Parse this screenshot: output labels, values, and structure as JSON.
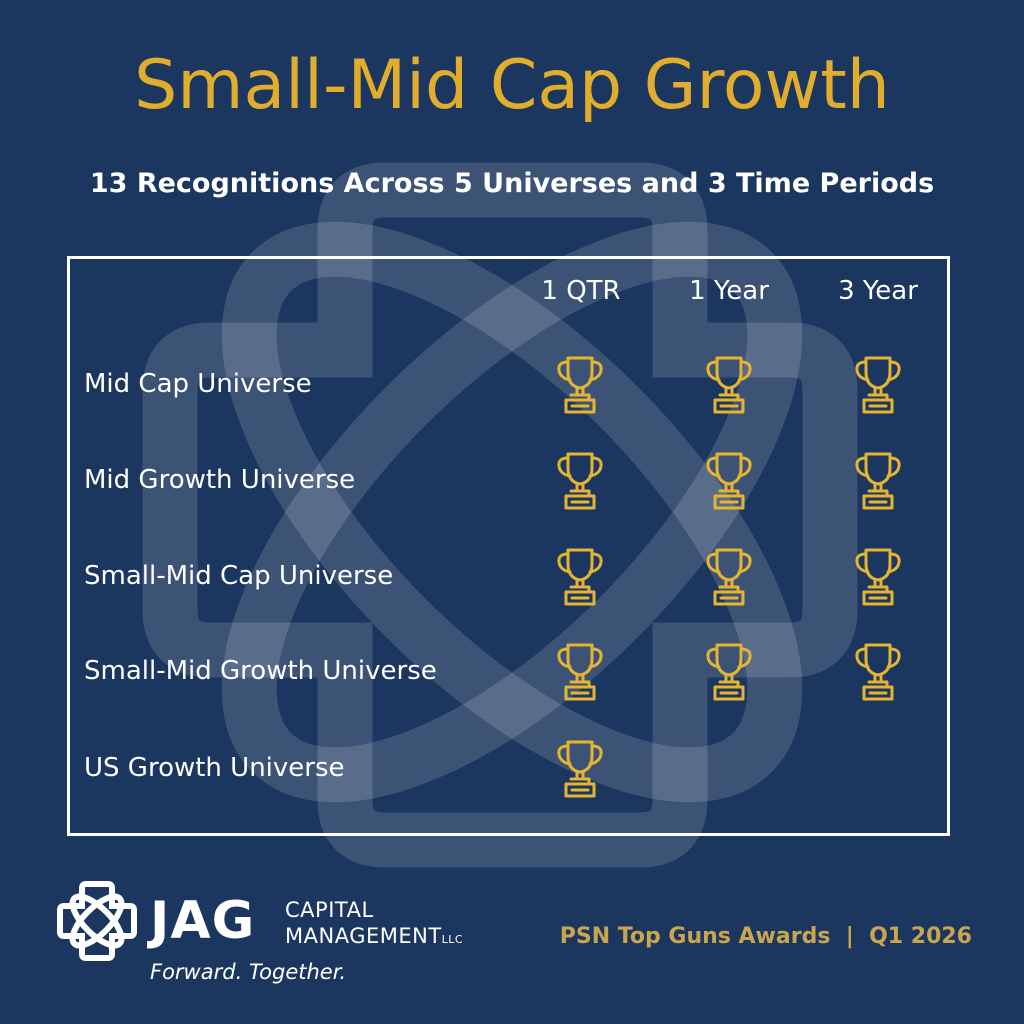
{
  "title": "Small-Mid Cap Growth",
  "subtitle": "13 Recognitions Across 5 Universes and 3 Time Periods",
  "columns": [
    "1 QTR",
    "1 Year",
    "3 Year"
  ],
  "rows": [
    {
      "label": "Mid Cap Universe",
      "awards": [
        true,
        true,
        true
      ]
    },
    {
      "label": "Mid Growth Universe",
      "awards": [
        true,
        true,
        true
      ]
    },
    {
      "label": "Small-Mid Cap Universe",
      "awards": [
        true,
        true,
        true
      ]
    },
    {
      "label": "Small-Mid Growth Universe",
      "awards": [
        true,
        true,
        true
      ]
    },
    {
      "label": "US Growth Universe",
      "awards": [
        true,
        false,
        false
      ]
    }
  ],
  "logo": {
    "name": "JAG",
    "line1": "CAPITAL",
    "line2": "MANAGEMENT",
    "suffix": "LLC",
    "tagline": "Forward. Together."
  },
  "footer": "PSN Top Guns Awards | Q1 2026",
  "colors": {
    "background": "#1b365f",
    "gold": "#e1ad2d",
    "text": "#ffffff",
    "trophy": "#e6b433"
  },
  "icons": {
    "award": "trophy-icon",
    "logo": "jag-logo-mark"
  }
}
